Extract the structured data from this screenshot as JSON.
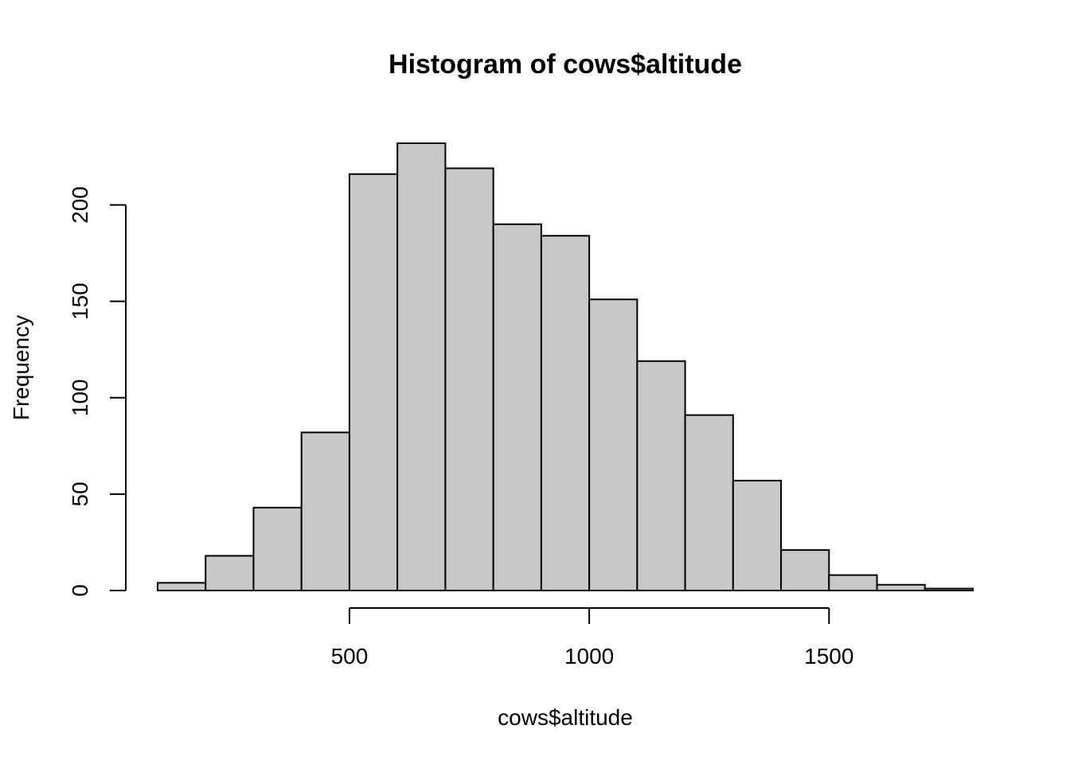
{
  "chart_data": {
    "type": "bar",
    "title": "Histogram of cows$altitude",
    "xlabel": "cows$altitude",
    "ylabel": "Frequency",
    "bin_edges": [
      100,
      200,
      300,
      400,
      500,
      600,
      700,
      800,
      900,
      1000,
      1100,
      1200,
      1300,
      1400,
      1500,
      1600,
      1700,
      1800
    ],
    "values": [
      4,
      18,
      43,
      82,
      216,
      232,
      219,
      190,
      184,
      151,
      119,
      91,
      57,
      21,
      8,
      3,
      1
    ],
    "xlim": [
      100,
      1800
    ],
    "ylim": [
      0,
      232
    ],
    "x_ticks": [
      500,
      1000,
      1500
    ],
    "y_ticks": [
      0,
      50,
      100,
      150,
      200
    ],
    "bar_fill": "#c8c8c8",
    "bar_stroke": "#000000",
    "grid": false,
    "legend": "none"
  }
}
